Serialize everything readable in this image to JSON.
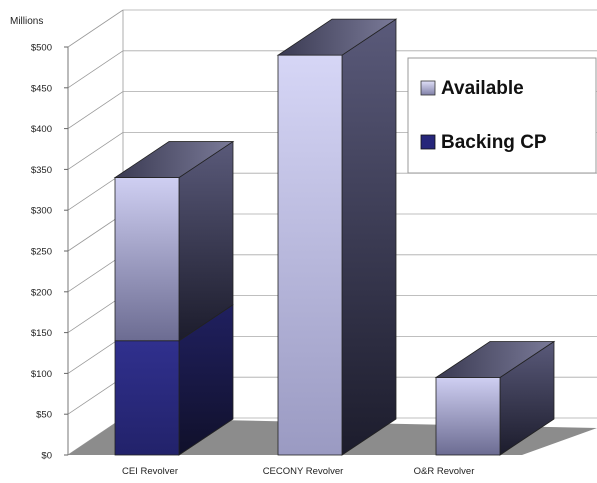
{
  "chart_data": {
    "type": "bar",
    "stacked": true,
    "style": "3d",
    "unit_label": "Millions",
    "categories": [
      "CEI Revolver",
      "CECONY Revolver",
      "O&R Revolver"
    ],
    "series": [
      {
        "name": "Backing CP",
        "values": [
          140,
          0,
          0
        ]
      },
      {
        "name": "Available",
        "values": [
          200,
          490,
          95
        ]
      }
    ],
    "ylim": [
      0,
      500
    ],
    "ticks": [
      "$0",
      "$50",
      "$100",
      "$150",
      "$200",
      "$250",
      "$300",
      "$350",
      "$400",
      "$450",
      "$500"
    ],
    "legend_position": "right",
    "grid": true,
    "colors": {
      "backing_front": "#2e2e8c",
      "backing_side": "#1a1a4a",
      "available_light": "#c8c8f0",
      "available_dark": "#6a6a90",
      "floor": "#8c8c8c"
    }
  }
}
